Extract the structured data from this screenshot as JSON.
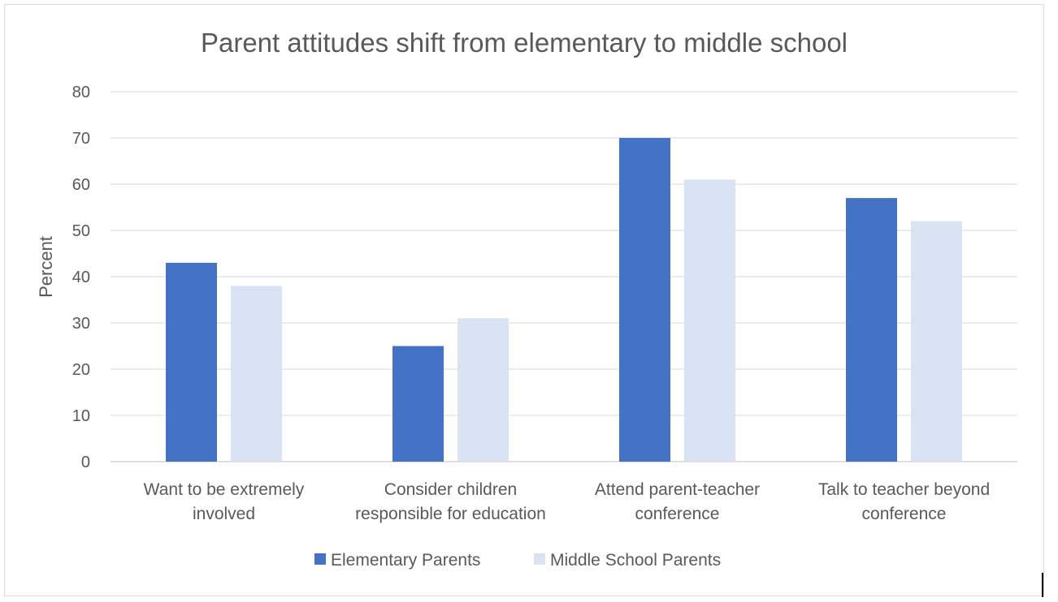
{
  "chart_data": {
    "type": "bar",
    "title": "Parent attitudes shift from elementary to middle school",
    "xlabel": "",
    "ylabel": "Percent",
    "ylim": [
      0,
      80
    ],
    "yticks": [
      0,
      10,
      20,
      30,
      40,
      50,
      60,
      70,
      80
    ],
    "grid": true,
    "legend_position": "bottom",
    "categories": [
      [
        "Want to be extremely",
        "involved"
      ],
      [
        "Consider children",
        "responsible for education"
      ],
      [
        "Attend parent-teacher",
        "conference"
      ],
      [
        "Talk to teacher beyond",
        "conference"
      ]
    ],
    "series": [
      {
        "name": "Elementary Parents",
        "color": "#4472c4",
        "values": [
          43,
          25,
          70,
          57
        ]
      },
      {
        "name": "Middle School Parents",
        "color": "#dae3f3",
        "values": [
          38,
          31,
          61,
          52
        ]
      }
    ]
  }
}
